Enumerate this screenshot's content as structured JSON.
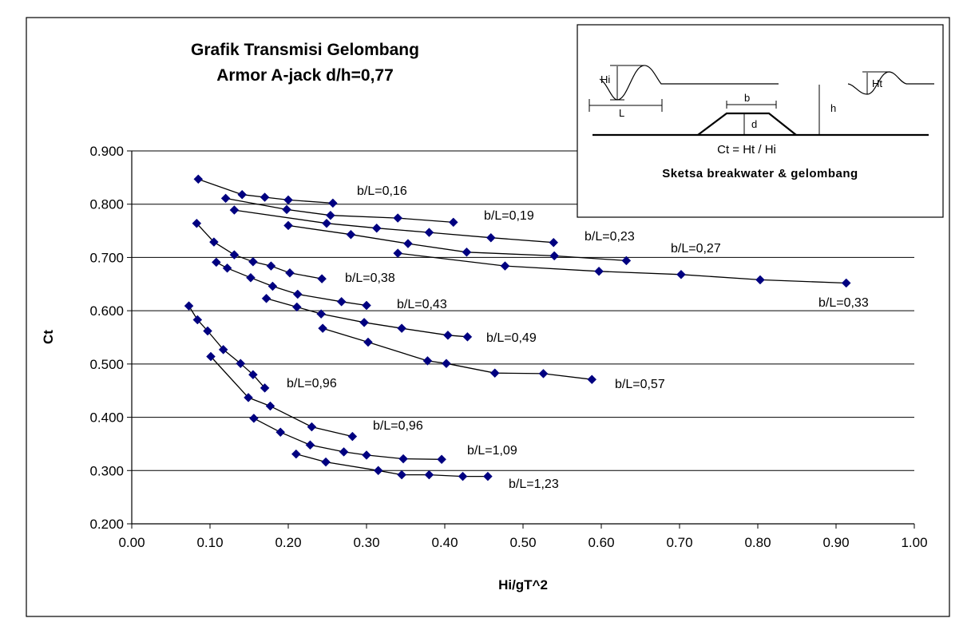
{
  "chart_data": {
    "type": "line",
    "title": "Grafik Transmisi Gelombang",
    "subtitle": "Armor A-jack d/h=0,77",
    "xlabel": "Hi/gT^2",
    "ylabel": "Ct",
    "xlim": [
      0,
      1
    ],
    "ylim": [
      0.2,
      0.9
    ],
    "x_ticks": [
      "0.00",
      "0.10",
      "0.20",
      "0.30",
      "0.40",
      "0.50",
      "0.60",
      "0.70",
      "0.80",
      "0.90",
      "1.00"
    ],
    "y_ticks": [
      "0.200",
      "0.300",
      "0.400",
      "0.500",
      "0.600",
      "0.700",
      "0.800",
      "0.900"
    ],
    "grid": "horizontal",
    "marker": "diamond",
    "series_color": "#000080",
    "series": [
      {
        "label": "b/L=0,16",
        "x": [
          0.085,
          0.141,
          0.17,
          0.2,
          0.257
        ],
        "y": [
          0.847,
          0.818,
          0.813,
          0.808,
          0.802
        ]
      },
      {
        "label": "b/L=0,19",
        "x": [
          0.12,
          0.198,
          0.254,
          0.34,
          0.411
        ],
        "y": [
          0.811,
          0.79,
          0.779,
          0.774,
          0.766
        ]
      },
      {
        "label": "b/L=0,23",
        "x": [
          0.131,
          0.249,
          0.313,
          0.38,
          0.459,
          0.539
        ],
        "y": [
          0.789,
          0.764,
          0.755,
          0.747,
          0.737,
          0.728
        ]
      },
      {
        "label": "b/L=0,27",
        "x": [
          0.2,
          0.28,
          0.353,
          0.428,
          0.54,
          0.632
        ],
        "y": [
          0.76,
          0.743,
          0.726,
          0.71,
          0.703,
          0.694
        ]
      },
      {
        "label": "b/L=0,33",
        "x": [
          0.34,
          0.477,
          0.597,
          0.702,
          0.803,
          0.913
        ],
        "y": [
          0.708,
          0.684,
          0.674,
          0.668,
          0.658,
          0.652
        ]
      },
      {
        "label": "b/L=0,38",
        "x": [
          0.083,
          0.105,
          0.131,
          0.155,
          0.178,
          0.202,
          0.243
        ],
        "y": [
          0.764,
          0.729,
          0.705,
          0.692,
          0.684,
          0.671,
          0.66
        ]
      },
      {
        "label": "b/L=0,43",
        "x": [
          0.108,
          0.122,
          0.152,
          0.18,
          0.212,
          0.268,
          0.3
        ],
        "y": [
          0.691,
          0.68,
          0.662,
          0.646,
          0.631,
          0.617,
          0.61
        ]
      },
      {
        "label": "b/L=0,49",
        "x": [
          0.172,
          0.211,
          0.242,
          0.297,
          0.345,
          0.404,
          0.429
        ],
        "y": [
          0.623,
          0.607,
          0.594,
          0.578,
          0.567,
          0.554,
          0.551
        ]
      },
      {
        "label": "b/L=0,57",
        "x": [
          0.244,
          0.302,
          0.378,
          0.402,
          0.464,
          0.526,
          0.588
        ],
        "y": [
          0.567,
          0.541,
          0.506,
          0.501,
          0.483,
          0.482,
          0.471
        ]
      },
      {
        "label": "b/L=0,96",
        "x": [
          0.073,
          0.084,
          0.097,
          0.117,
          0.139,
          0.155,
          0.17
        ],
        "y": [
          0.609,
          0.583,
          0.562,
          0.527,
          0.501,
          0.48,
          0.455
        ]
      },
      {
        "label": "b/L=0,96",
        "x": [
          0.101,
          0.149,
          0.177,
          0.23,
          0.282
        ],
        "y": [
          0.514,
          0.437,
          0.421,
          0.382,
          0.364
        ]
      },
      {
        "label": "b/L=1,09",
        "x": [
          0.156,
          0.19,
          0.228,
          0.271,
          0.3,
          0.347,
          0.396
        ],
        "y": [
          0.398,
          0.372,
          0.348,
          0.335,
          0.329,
          0.322,
          0.321
        ]
      },
      {
        "label": "b/L=1,23",
        "x": [
          0.21,
          0.248,
          0.315,
          0.345,
          0.38,
          0.423,
          0.455
        ],
        "y": [
          0.331,
          0.316,
          0.3,
          0.292,
          0.292,
          0.289,
          0.289
        ]
      }
    ]
  },
  "inset": {
    "hi": "Hi",
    "ht": "Ht",
    "l": "L",
    "b": "b",
    "d": "d",
    "h": "h",
    "formula": "Ct = Ht / Hi",
    "title": "Sketsa breakwater & gelombang"
  }
}
